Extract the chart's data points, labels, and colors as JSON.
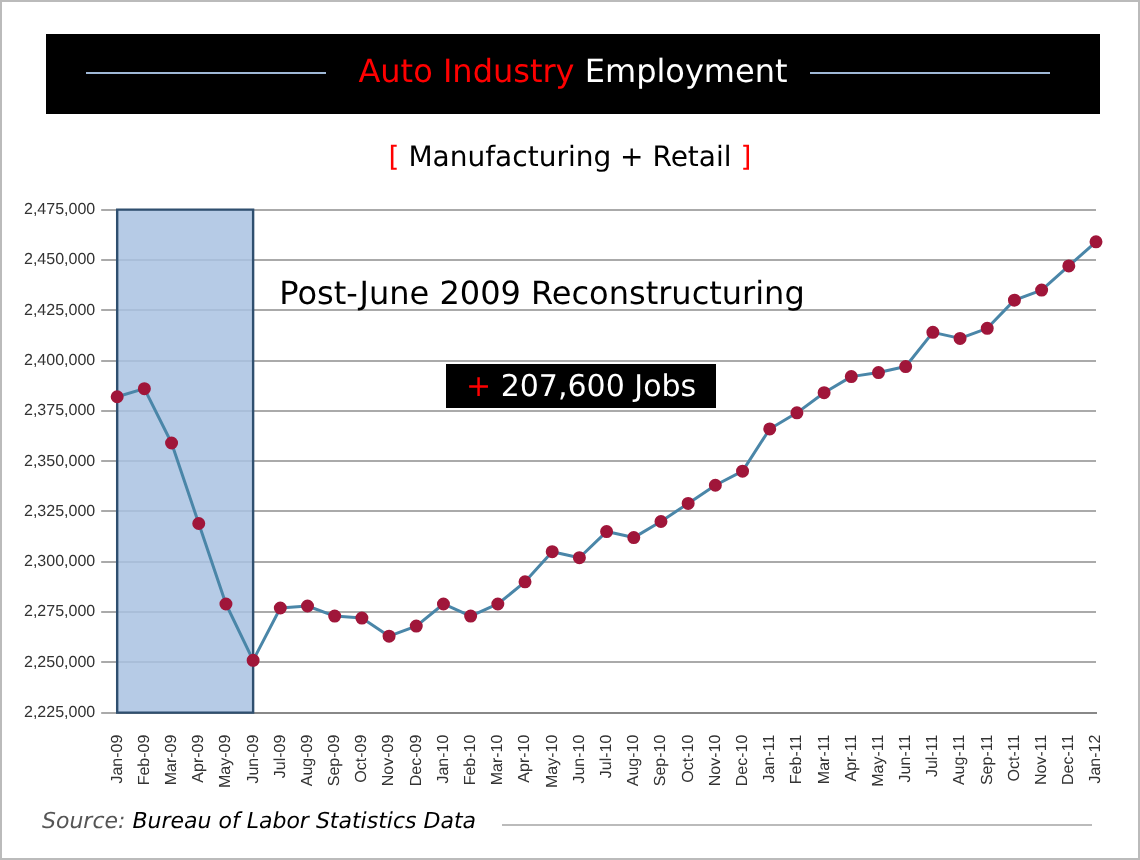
{
  "chart_data": {
    "type": "line",
    "title": "Auto Industry Employment",
    "subtitle": "[ Manufacturing + Retail ]",
    "categories": [
      "Jan-09",
      "Feb-09",
      "Mar-09",
      "Apr-09",
      "May-09",
      "Jun-09",
      "Jul-09",
      "Aug-09",
      "Sep-09",
      "Oct-09",
      "Nov-09",
      "Dec-09",
      "Jan-10",
      "Feb-10",
      "Mar-10",
      "Apr-10",
      "May-10",
      "Jun-10",
      "Jul-10",
      "Aug-10",
      "Sep-10",
      "Oct-10",
      "Nov-10",
      "Dec-10",
      "Jan-11",
      "Feb-11",
      "Mar-11",
      "Apr-11",
      "May-11",
      "Jun-11",
      "Jul-11",
      "Aug-11",
      "Sep-11",
      "Oct-11",
      "Nov-11",
      "Dec-11",
      "Jan-12"
    ],
    "series": [
      {
        "color": "#4a86a8",
        "values": [
          2382000,
          2386000,
          2359000,
          2319000,
          2279000,
          2251000,
          2277000,
          2278000,
          2273000,
          2272000,
          2263000,
          2268000,
          2279000,
          2273000,
          2279000,
          2290000,
          2305000,
          2302000,
          2315000,
          2312000,
          2320000,
          2329000,
          2338000,
          2345000,
          2366000,
          2374000,
          2384000,
          2392000,
          2394000,
          2397000,
          2414000,
          2411000,
          2416000,
          2430000,
          2435000,
          2447000,
          2459000
        ]
      }
    ],
    "marker": "circle",
    "ylim": [
      2225000,
      2475000
    ],
    "yticks": [
      {
        "value": 2225000,
        "label": "2,225,000"
      },
      {
        "value": 2250000,
        "label": "2,250,000"
      },
      {
        "value": 2275000,
        "label": "2,275,000"
      },
      {
        "value": 2300000,
        "label": "2,300,000"
      },
      {
        "value": 2325000,
        "label": "2,325,000"
      },
      {
        "value": 2350000,
        "label": "2,350,000"
      },
      {
        "value": 2375000,
        "label": "2,375,000"
      },
      {
        "value": 2400000,
        "label": "2,400,000"
      },
      {
        "value": 2425000,
        "label": "2,425,000"
      },
      {
        "value": 2450000,
        "label": "2,450,000"
      },
      {
        "value": 2475000,
        "label": "2,475,000"
      }
    ],
    "grid": "y",
    "bands": [
      {
        "axis": "x",
        "from": "Jan-09",
        "to": "Jun-09",
        "color": "#a9c2e2"
      }
    ],
    "annotations": [
      "Post-June 2009 Reconstructuring",
      "+ 207,600 Jobs",
      "Source: Bureau of Labor Statistics Data"
    ]
  }
}
